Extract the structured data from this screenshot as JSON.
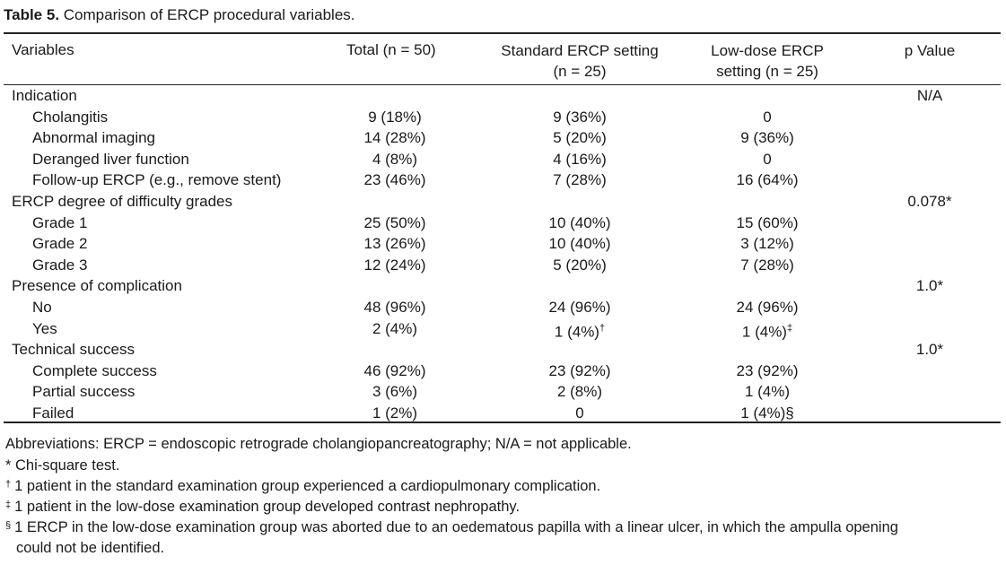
{
  "caption": {
    "label": "Table 5.",
    "text": " Comparison of ERCP procedural variables."
  },
  "headers": {
    "variables": "Variables",
    "total": "Total (n = 50)",
    "standard_line1": "Standard ERCP setting",
    "standard_line2": "(n = 25)",
    "lowdose_line1": "Low-dose ERCP",
    "lowdose_line2": "setting (n = 25)",
    "pvalue": "p Value"
  },
  "rows": [
    {
      "label": "Indication",
      "total": "",
      "standard": "",
      "standard_sup": "",
      "lowdose": "",
      "lowdose_sup": "",
      "p": "N/A",
      "indent": false
    },
    {
      "label": "Cholangitis",
      "total": "9 (18%)",
      "standard": "9 (36%)",
      "standard_sup": "",
      "lowdose": "0",
      "lowdose_sup": "",
      "p": "",
      "indent": true
    },
    {
      "label": "Abnormal imaging",
      "total": "14 (28%)",
      "standard": "5 (20%)",
      "standard_sup": "",
      "lowdose": "9 (36%)",
      "lowdose_sup": "",
      "p": "",
      "indent": true
    },
    {
      "label": "Deranged liver function",
      "total": "4 (8%)",
      "standard": "4 (16%)",
      "standard_sup": "",
      "lowdose": "0",
      "lowdose_sup": "",
      "p": "",
      "indent": true
    },
    {
      "label": "Follow-up ERCP (e.g., remove stent)",
      "total": "23 (46%)",
      "standard": "7 (28%)",
      "standard_sup": "",
      "lowdose": "16 (64%)",
      "lowdose_sup": "",
      "p": "",
      "indent": true
    },
    {
      "label": "ERCP degree of difficulty grades",
      "total": "",
      "standard": "",
      "standard_sup": "",
      "lowdose": "",
      "lowdose_sup": "",
      "p": "0.078*",
      "indent": false
    },
    {
      "label": "Grade 1",
      "total": "25 (50%)",
      "standard": "10 (40%)",
      "standard_sup": "",
      "lowdose": "15 (60%)",
      "lowdose_sup": "",
      "p": "",
      "indent": true
    },
    {
      "label": "Grade 2",
      "total": "13 (26%)",
      "standard": "10 (40%)",
      "standard_sup": "",
      "lowdose": "3 (12%)",
      "lowdose_sup": "",
      "p": "",
      "indent": true
    },
    {
      "label": "Grade 3",
      "total": "12 (24%)",
      "standard": "5 (20%)",
      "standard_sup": "",
      "lowdose": "7 (28%)",
      "lowdose_sup": "",
      "p": "",
      "indent": true
    },
    {
      "label": "Presence of complication",
      "total": "",
      "standard": "",
      "standard_sup": "",
      "lowdose": "",
      "lowdose_sup": "",
      "p": "1.0*",
      "indent": false
    },
    {
      "label": "No",
      "total": "48 (96%)",
      "standard": "24 (96%)",
      "standard_sup": "",
      "lowdose": "24 (96%)",
      "lowdose_sup": "",
      "p": "",
      "indent": true
    },
    {
      "label": "Yes",
      "total": "2 (4%)",
      "standard": "1 (4%)",
      "standard_sup": "†",
      "lowdose": "1 (4%)",
      "lowdose_sup": "‡",
      "p": "",
      "indent": true
    },
    {
      "label": "Technical success",
      "total": "",
      "standard": "",
      "standard_sup": "",
      "lowdose": "",
      "lowdose_sup": "",
      "p": "1.0*",
      "indent": false
    },
    {
      "label": "Complete success",
      "total": "46 (92%)",
      "standard": "23 (92%)",
      "standard_sup": "",
      "lowdose": "23 (92%)",
      "lowdose_sup": "",
      "p": "",
      "indent": true
    },
    {
      "label": "Partial success",
      "total": "3 (6%)",
      "standard": "2 (8%)",
      "standard_sup": "",
      "lowdose": "1 (4%)",
      "lowdose_sup": "",
      "p": "",
      "indent": true
    },
    {
      "label": "Failed",
      "total": "1 (2%)",
      "standard": "0",
      "standard_sup": "",
      "lowdose": "1 (4%)§",
      "lowdose_sup": "",
      "p": "",
      "indent": true
    }
  ],
  "notes": [
    {
      "mark": "",
      "text": "Abbreviations: ERCP = endoscopic retrograde cholangiopancreatography; N/A = not applicable."
    },
    {
      "mark": "",
      "text": "* Chi-square test."
    },
    {
      "mark": "†",
      "text": "1 patient in the standard examination group experienced a cardiopulmonary complication."
    },
    {
      "mark": "‡",
      "text": "1 patient in the low-dose examination group developed contrast nephropathy."
    },
    {
      "mark": "§",
      "text": "1 ERCP in the low-dose examination group was aborted due to an oedematous papilla with a linear ulcer, in which the ampulla opening"
    },
    {
      "mark": "",
      "text": "could not be identified."
    }
  ]
}
